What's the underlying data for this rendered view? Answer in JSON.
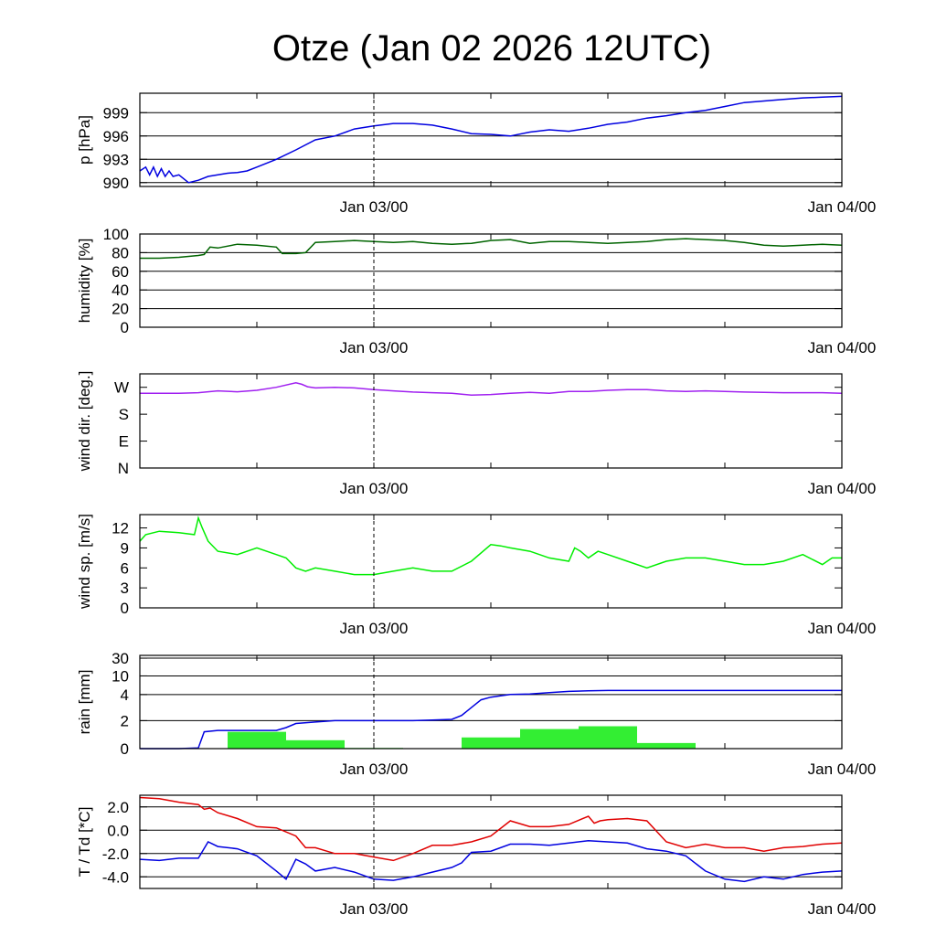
{
  "title": "Otze (Jan 02 2026 12UTC)",
  "x_tick_labels": [
    "Jan 03/00",
    "Jan 04/00"
  ],
  "chart_data": [
    {
      "type": "line",
      "ylabel": "p [hPa]",
      "ylim": [
        989.5,
        1001.5
      ],
      "yticks": [
        990,
        993,
        996,
        999
      ],
      "ytick_labels": [
        "990",
        "993",
        "996",
        "999"
      ],
      "grid": true,
      "xlim_hours": [
        0,
        36
      ],
      "series": [
        {
          "color": "#0000e0",
          "x": [
            0,
            0.3,
            0.5,
            0.7,
            0.9,
            1.1,
            1.3,
            1.5,
            1.7,
            2.0,
            2.5,
            3,
            3.5,
            4,
            4.5,
            5,
            5.5,
            6,
            7,
            8,
            9,
            10,
            11,
            12,
            13,
            14,
            15,
            16,
            17,
            18,
            19,
            20,
            21,
            22,
            23,
            24,
            25,
            26,
            27,
            28,
            29,
            30,
            31,
            32,
            33,
            34,
            35,
            36
          ],
          "y": [
            991.5,
            992,
            991,
            992,
            990.8,
            991.8,
            990.8,
            991.5,
            990.8,
            991.0,
            990.0,
            990.3,
            990.8,
            991.0,
            991.2,
            991.3,
            991.5,
            992.0,
            993.0,
            994.2,
            995.5,
            996.0,
            996.9,
            997.3,
            997.6,
            997.6,
            997.4,
            996.9,
            996.3,
            996.2,
            996.0,
            996.5,
            996.8,
            996.6,
            997.0,
            997.5,
            997.8,
            998.3,
            998.6,
            999.0,
            999.3,
            999.8,
            1000.3,
            1000.5,
            1000.7,
            1000.9,
            1001.0,
            1001.1
          ]
        }
      ]
    },
    {
      "type": "line",
      "ylabel": "humidity [%]",
      "ylim": [
        0,
        100
      ],
      "yticks": [
        0,
        20,
        40,
        60,
        80,
        100
      ],
      "ytick_labels": [
        "0",
        "20",
        "40",
        "60",
        "80",
        "100"
      ],
      "grid": true,
      "xlim_hours": [
        0,
        36
      ],
      "series": [
        {
          "color": "#006400",
          "x": [
            0,
            1,
            2,
            3,
            3.3,
            3.6,
            4,
            5,
            6,
            7,
            7.3,
            8,
            8.5,
            9,
            10,
            11,
            12,
            13,
            14,
            15,
            16,
            17,
            18,
            19,
            20,
            21,
            22,
            23,
            24,
            25,
            26,
            27,
            28,
            29,
            30,
            31,
            32,
            33,
            34,
            35,
            36
          ],
          "y": [
            74,
            74,
            75,
            77,
            78,
            86,
            85,
            89,
            88,
            86,
            79,
            79,
            80,
            91,
            92,
            93,
            92,
            91,
            92,
            90,
            89,
            90,
            93,
            94,
            90,
            92,
            92,
            91,
            90,
            91,
            92,
            94,
            95,
            94,
            93,
            91,
            88,
            87,
            88,
            89,
            88
          ]
        }
      ]
    },
    {
      "type": "line",
      "ylabel": "wind dir. [deg.]",
      "ylim": [
        0,
        315
      ],
      "yticks": [
        0,
        90,
        180,
        270
      ],
      "ytick_labels": [
        "N",
        "E",
        "S",
        "W"
      ],
      "grid": false,
      "xlim_hours": [
        0,
        36
      ],
      "series": [
        {
          "color": "#a020f0",
          "x": [
            0,
            1,
            2,
            3,
            4,
            5,
            6,
            7,
            8,
            8.3,
            8.6,
            9,
            10,
            11,
            12,
            13,
            14,
            15,
            16,
            17,
            18,
            19,
            20,
            21,
            22,
            23,
            24,
            25,
            26,
            27,
            28,
            29,
            30,
            31,
            32,
            33,
            34,
            35,
            36
          ],
          "y": [
            250,
            250,
            250,
            252,
            258,
            255,
            260,
            270,
            285,
            280,
            272,
            268,
            270,
            268,
            262,
            258,
            254,
            252,
            250,
            244,
            246,
            250,
            253,
            250,
            256,
            256,
            260,
            262,
            262,
            258,
            256,
            258,
            256,
            254,
            253,
            252,
            252,
            252,
            250
          ]
        }
      ]
    },
    {
      "type": "line",
      "ylabel": "wind sp. [m/s]",
      "ylim": [
        0,
        14
      ],
      "yticks": [
        0,
        3,
        6,
        9,
        12
      ],
      "ytick_labels": [
        "0",
        "3",
        "6",
        "9",
        "12"
      ],
      "grid": false,
      "xlim_hours": [
        0,
        36
      ],
      "series": [
        {
          "color": "#00ee00",
          "x": [
            0,
            0.3,
            1,
            2,
            2.8,
            3,
            3.2,
            3.5,
            4,
            5,
            6,
            7,
            7.5,
            8,
            8.5,
            9,
            10,
            11,
            12,
            13,
            14,
            15,
            16,
            17,
            18,
            18.5,
            19,
            20,
            21,
            22,
            22.3,
            22.6,
            23,
            23.5,
            24,
            25,
            26,
            27,
            28,
            29,
            30,
            31,
            32,
            33,
            34,
            35,
            35.5,
            36
          ],
          "y": [
            10.0,
            11.0,
            11.5,
            11.3,
            11.0,
            13.5,
            12.0,
            10.0,
            8.5,
            8.0,
            9.0,
            8.0,
            7.5,
            6.0,
            5.5,
            6.0,
            5.5,
            5.0,
            5.0,
            5.5,
            6.0,
            5.5,
            5.5,
            7.0,
            9.5,
            9.3,
            9.0,
            8.5,
            7.5,
            7.0,
            9.0,
            8.5,
            7.5,
            8.5,
            8.0,
            7.0,
            6.0,
            7.0,
            7.5,
            7.5,
            7.0,
            6.5,
            6.5,
            7.0,
            8.0,
            6.5,
            7.5,
            7.5
          ]
        }
      ]
    },
    {
      "type": "bar",
      "ylabel": "rain [mm]",
      "ylim": [
        0,
        30
      ],
      "yscale": "nonlinear",
      "yticks": [
        0,
        2,
        4,
        10,
        30
      ],
      "ytick_labels": [
        "0",
        "2",
        "4",
        "10",
        "30"
      ],
      "grid": true,
      "xlim_hours": [
        0,
        36
      ],
      "bars": [
        {
          "x0": 4.5,
          "x1": 7.5,
          "value": 1.2
        },
        {
          "x0": 7.5,
          "x1": 10.5,
          "value": 0.6
        },
        {
          "x0": 10.5,
          "x1": 13.5,
          "value": 0.05
        },
        {
          "x0": 16.5,
          "x1": 19.5,
          "value": 0.8
        },
        {
          "x0": 19.5,
          "x1": 22.5,
          "value": 1.4
        },
        {
          "x0": 22.5,
          "x1": 25.5,
          "value": 1.6
        },
        {
          "x0": 25.5,
          "x1": 28.5,
          "value": 0.4
        }
      ],
      "bar_color": "#33ee33",
      "series": [
        {
          "color": "#0000e0",
          "x": [
            0,
            2,
            3,
            3.3,
            4,
            7,
            7.5,
            8,
            9,
            10,
            11,
            12,
            13,
            14,
            15,
            16,
            16.5,
            17,
            17.5,
            18,
            19,
            20,
            21,
            22,
            23,
            24,
            25,
            26,
            27,
            28,
            30,
            32,
            34,
            36
          ],
          "y": [
            0,
            0,
            0.05,
            1.2,
            1.3,
            1.3,
            1.5,
            1.8,
            1.9,
            2.0,
            2.0,
            2.0,
            2.0,
            2.0,
            2.05,
            2.1,
            2.4,
            3.0,
            3.6,
            3.8,
            4.0,
            4.2,
            4.6,
            5.0,
            5.2,
            5.3,
            5.3,
            5.3,
            5.3,
            5.3,
            5.3,
            5.3,
            5.3,
            5.3
          ]
        }
      ]
    },
    {
      "type": "line",
      "ylabel": "T / Td [*C]",
      "ylim": [
        -5.0,
        3.0
      ],
      "yticks": [
        -4.0,
        -2.0,
        0.0,
        2.0
      ],
      "ytick_labels": [
        "-4.0",
        "-2.0",
        "0.0",
        "2.0"
      ],
      "grid": true,
      "xlim_hours": [
        0,
        36
      ],
      "series": [
        {
          "color": "#e00000",
          "x": [
            0,
            1,
            2,
            3,
            3.3,
            3.6,
            4,
            5,
            6,
            7,
            8,
            8.5,
            9,
            10,
            11,
            12,
            13,
            14,
            15,
            16,
            17,
            18,
            19,
            20,
            21,
            22,
            23,
            23.3,
            23.6,
            24,
            25,
            26,
            27,
            28,
            29,
            30,
            31,
            32,
            33,
            34,
            35,
            36
          ],
          "y": [
            2.8,
            2.7,
            2.4,
            2.2,
            1.8,
            1.9,
            1.5,
            1.0,
            0.3,
            0.2,
            -0.5,
            -1.5,
            -1.5,
            -2.0,
            -2.0,
            -2.3,
            -2.6,
            -2.0,
            -1.3,
            -1.3,
            -1.0,
            -0.5,
            0.8,
            0.3,
            0.3,
            0.5,
            1.2,
            0.6,
            0.8,
            0.9,
            1.0,
            0.8,
            -1.0,
            -1.5,
            -1.2,
            -1.5,
            -1.5,
            -1.8,
            -1.5,
            -1.4,
            -1.2,
            -1.1
          ]
        },
        {
          "color": "#0000e0",
          "x": [
            0,
            1,
            2,
            3,
            3.5,
            4,
            5,
            6,
            7,
            7.5,
            8,
            8.5,
            9,
            10,
            11,
            12,
            13,
            14,
            15,
            16,
            16.5,
            17,
            18,
            19,
            20,
            21,
            22,
            23,
            24,
            25,
            26,
            27,
            28,
            29,
            30,
            31,
            32,
            33,
            34,
            35,
            36
          ],
          "y": [
            -2.5,
            -2.6,
            -2.4,
            -2.4,
            -1.0,
            -1.4,
            -1.6,
            -2.2,
            -3.5,
            -4.2,
            -2.5,
            -2.9,
            -3.5,
            -3.2,
            -3.6,
            -4.2,
            -4.3,
            -4.0,
            -3.6,
            -3.2,
            -2.8,
            -1.9,
            -1.8,
            -1.2,
            -1.2,
            -1.3,
            -1.1,
            -0.9,
            -1.0,
            -1.1,
            -1.6,
            -1.8,
            -2.2,
            -3.5,
            -4.2,
            -4.4,
            -4.0,
            -4.2,
            -3.8,
            -3.6,
            -3.5
          ]
        }
      ]
    }
  ]
}
